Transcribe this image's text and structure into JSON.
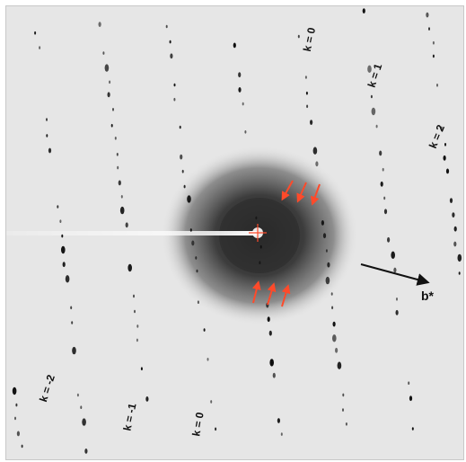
{
  "labels": {
    "k_top_0": "k = 0",
    "k_top_1": "k = 1",
    "k_top_2": "k = 2",
    "k_bottom_m2": "k = -2",
    "k_bottom_m1": "k = -1",
    "k_bottom_0": "k = 0",
    "axis": "b*"
  },
  "colors": {
    "background": "#e6e6e6",
    "halo": "#3a3a3a",
    "spot": "#0a0a0a",
    "arrow_red": "#ff4a2a",
    "axis_arrow": "#111111"
  },
  "icons": {
    "pointer": "red-arrow-icon",
    "axis": "b-star-axis-arrow-icon"
  }
}
